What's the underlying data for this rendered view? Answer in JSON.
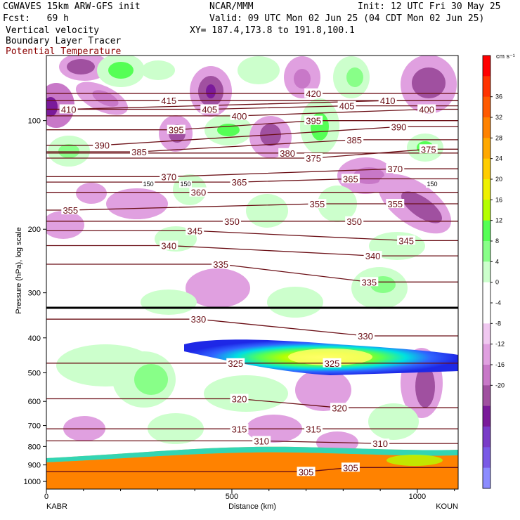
{
  "header": {
    "model": "CGWAVES 15km ARW-GFS init",
    "center": "NCAR/MMM",
    "init": "Init: 12 UTC Fri 30 May 25",
    "fcst": "Fcst:   69 h",
    "valid": "Valid: 09 UTC Mon 02 Jun 25 (04 CDT Mon 02 Jun 25)",
    "field1": "Vertical velocity",
    "field2": "Boundary Layer Tracer",
    "field3": "Potential Temperature",
    "xy": "XY= 187.4,173.8 to 191.8,100.1"
  },
  "colorbar": {
    "units": "cm s⁻¹",
    "labels": [
      "36",
      "32",
      "28",
      "24",
      "20",
      "16",
      "12",
      "8",
      "4",
      "0",
      "-4",
      "-8",
      "-12",
      "-16",
      "-20"
    ],
    "colors": [
      "#ff0000",
      "#ff3300",
      "#ff5a00",
      "#ff8200",
      "#ffa800",
      "#ffcd00",
      "#eef000",
      "#b4ff00",
      "#55ff55",
      "#88ff88",
      "#ccffcc",
      "#ffffff",
      "#ffffff",
      "#f0c8f0",
      "#e0a0e0",
      "#c878c8",
      "#a050a0",
      "#7a1a9a",
      "#7a3cc8",
      "#7a5ae6",
      "#8c8cff"
    ]
  },
  "chart_data": {
    "type": "cross-section",
    "title": "Vertical velocity / Boundary Layer Tracer / Potential Temperature",
    "xlabel": "Distance (km)",
    "ylabel": "Pressure (hPa), log scale",
    "x_ticks": [
      0,
      500,
      1000
    ],
    "y_ticks": [
      100,
      200,
      300,
      400,
      500,
      600,
      700,
      800,
      900,
      1000
    ],
    "endpoints": [
      "KABR",
      "KOUN"
    ],
    "theta_contour_labels": [
      {
        "value": 420,
        "x": 720,
        "p": 84
      },
      {
        "value": 415,
        "x": 330,
        "p": 88
      },
      {
        "value": 410,
        "x": 60,
        "p": 93
      },
      {
        "value": 410,
        "x": 920,
        "p": 88
      },
      {
        "value": 405,
        "x": 440,
        "p": 93
      },
      {
        "value": 405,
        "x": 810,
        "p": 91
      },
      {
        "value": 400,
        "x": 520,
        "p": 97
      },
      {
        "value": 400,
        "x": 1025,
        "p": 93
      },
      {
        "value": 395,
        "x": 350,
        "p": 106
      },
      {
        "value": 395,
        "x": 720,
        "p": 100
      },
      {
        "value": 390,
        "x": 150,
        "p": 117
      },
      {
        "value": 390,
        "x": 950,
        "p": 104
      },
      {
        "value": 385,
        "x": 250,
        "p": 122
      },
      {
        "value": 385,
        "x": 830,
        "p": 113
      },
      {
        "value": 380,
        "x": 650,
        "p": 123
      },
      {
        "value": 375,
        "x": 720,
        "p": 127
      },
      {
        "value": 375,
        "x": 1030,
        "p": 120
      },
      {
        "value": 370,
        "x": 330,
        "p": 143
      },
      {
        "value": 370,
        "x": 940,
        "p": 136
      },
      {
        "value": 365,
        "x": 520,
        "p": 148
      },
      {
        "value": 365,
        "x": 820,
        "p": 145
      },
      {
        "value": 360,
        "x": 410,
        "p": 158
      },
      {
        "value": 355,
        "x": 65,
        "p": 177
      },
      {
        "value": 355,
        "x": 730,
        "p": 170
      },
      {
        "value": 355,
        "x": 940,
        "p": 170
      },
      {
        "value": 350,
        "x": 500,
        "p": 190
      },
      {
        "value": 350,
        "x": 830,
        "p": 190
      },
      {
        "value": 345,
        "x": 400,
        "p": 202
      },
      {
        "value": 345,
        "x": 970,
        "p": 215
      },
      {
        "value": 340,
        "x": 330,
        "p": 222
      },
      {
        "value": 340,
        "x": 880,
        "p": 237
      },
      {
        "value": 335,
        "x": 470,
        "p": 250
      },
      {
        "value": 335,
        "x": 870,
        "p": 280
      },
      {
        "value": 330,
        "x": 410,
        "p": 355
      },
      {
        "value": 330,
        "x": 860,
        "p": 395
      },
      {
        "value": 325,
        "x": 510,
        "p": 470
      },
      {
        "value": 325,
        "x": 770,
        "p": 470
      },
      {
        "value": 320,
        "x": 520,
        "p": 590
      },
      {
        "value": 320,
        "x": 790,
        "p": 625
      },
      {
        "value": 315,
        "x": 520,
        "p": 715
      },
      {
        "value": 315,
        "x": 720,
        "p": 715
      },
      {
        "value": 310,
        "x": 580,
        "p": 772
      },
      {
        "value": 310,
        "x": 900,
        "p": 785
      },
      {
        "value": 305,
        "x": 700,
        "p": 940
      },
      {
        "value": 305,
        "x": 820,
        "p": 915
      }
    ],
    "tropopause_labels": [
      {
        "value": 150,
        "x": 275,
        "p": 150
      },
      {
        "value": 150,
        "x": 375,
        "p": 150
      },
      {
        "value": 150,
        "x": 1040,
        "p": 150
      }
    ]
  }
}
